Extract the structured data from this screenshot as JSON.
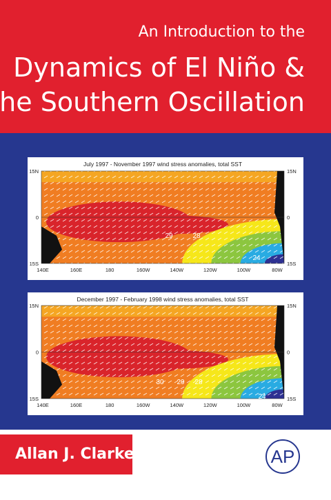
{
  "header": {
    "title_lines": [
      "An Introduction to the",
      "Dynamics of El Niño &",
      "the Southern Oscillation"
    ]
  },
  "figures": [
    {
      "caption": "July 1997 - November 1997 wind stress anomalies, total SST",
      "lat_labels": [
        "15N",
        "0",
        "15S"
      ],
      "lon_labels": [
        "140E",
        "160E",
        "180",
        "160W",
        "140W",
        "120W",
        "100W",
        "80W"
      ],
      "contour_labels": [
        "29",
        "28",
        "24"
      ]
    },
    {
      "caption": "December 1997 - February 1998 wind stress anomalies, total SST",
      "lat_labels": [
        "15N",
        "0",
        "15S"
      ],
      "lon_labels": [
        "140E",
        "160E",
        "180",
        "160W",
        "140W",
        "120W",
        "100W",
        "80W"
      ],
      "contour_labels": [
        "30",
        "29",
        "28",
        "24"
      ]
    }
  ],
  "author": "Allan J. Clarke",
  "publisher_logo": "AP"
}
